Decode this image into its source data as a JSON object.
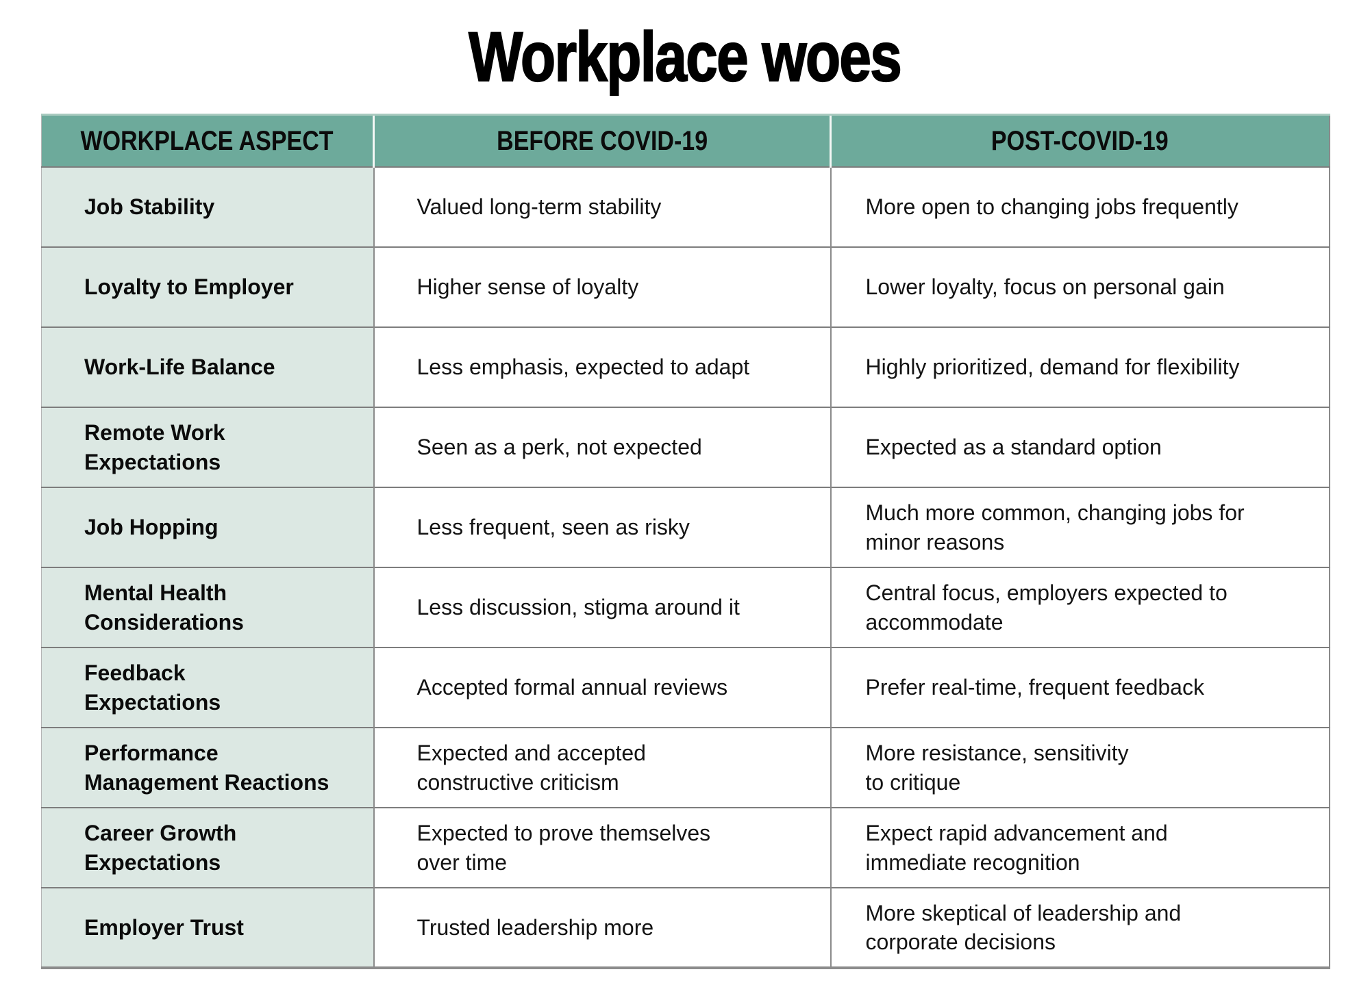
{
  "title": "Workplace woes",
  "colors": {
    "header_bg": "#6DAA9B",
    "aspect_col_bg": "#DCE8E3",
    "row_rule": "#7d7d7d",
    "text": "#141414"
  },
  "table": {
    "headers": [
      "WORKPLACE ASPECT",
      "BEFORE COVID-19",
      "POST-COVID-19"
    ],
    "rows": [
      {
        "aspect": "Job Stability",
        "before": "Valued long-term stability",
        "post": "More open to changing jobs frequently"
      },
      {
        "aspect": "Loyalty to Employer",
        "before": "Higher sense of loyalty",
        "post": "Lower loyalty, focus on personal gain"
      },
      {
        "aspect": "Work-Life Balance",
        "before": "Less emphasis, expected to adapt",
        "post": "Highly prioritized, demand for flexibility"
      },
      {
        "aspect": "Remote Work\nExpectations",
        "before": "Seen as a perk, not expected",
        "post": "Expected as a standard option"
      },
      {
        "aspect": "Job Hopping",
        "before": "Less frequent, seen as risky",
        "post": "Much more common, changing jobs for\nminor reasons"
      },
      {
        "aspect": "Mental Health\nConsiderations",
        "before": "Less discussion, stigma around it",
        "post": "Central focus, employers expected to\naccommodate"
      },
      {
        "aspect": "Feedback\nExpectations",
        "before": "Accepted formal annual reviews",
        "post": "Prefer real-time, frequent feedback"
      },
      {
        "aspect": "Performance\nManagement Reactions",
        "before": "Expected and accepted\nconstructive criticism",
        "post": "More resistance, sensitivity\nto critique"
      },
      {
        "aspect": "Career Growth\nExpectations",
        "before": "Expected to prove themselves\nover time",
        "post": "Expect rapid advancement and\nimmediate recognition"
      },
      {
        "aspect": "Employer Trust",
        "before": "Trusted leadership more",
        "post": "More skeptical of leadership and\ncorporate decisions"
      }
    ]
  },
  "chart_data": {
    "type": "table",
    "title": "Workplace woes",
    "columns": [
      "WORKPLACE ASPECT",
      "BEFORE COVID-19",
      "POST-COVID-19"
    ],
    "rows": [
      [
        "Job Stability",
        "Valued long-term stability",
        "More open to changing jobs frequently"
      ],
      [
        "Loyalty to Employer",
        "Higher sense of loyalty",
        "Lower loyalty, focus on personal gain"
      ],
      [
        "Work-Life Balance",
        "Less emphasis, expected to adapt",
        "Highly prioritized, demand for flexibility"
      ],
      [
        "Remote Work Expectations",
        "Seen as a perk, not expected",
        "Expected as a standard option"
      ],
      [
        "Job Hopping",
        "Less frequent, seen as risky",
        "Much more common, changing jobs for minor reasons"
      ],
      [
        "Mental Health Considerations",
        "Less discussion, stigma around it",
        "Central focus, employers expected to accommodate"
      ],
      [
        "Feedback Expectations",
        "Accepted formal annual reviews",
        "Prefer real-time, frequent feedback"
      ],
      [
        "Performance Management Reactions",
        "Expected and accepted constructive criticism",
        "More resistance, sensitivity to critique"
      ],
      [
        "Career Growth Expectations",
        "Expected to prove themselves over time",
        "Expect rapid advancement and immediate recognition"
      ],
      [
        "Employer Trust",
        "Trusted leadership more",
        "More skeptical of leadership and corporate decisions"
      ]
    ]
  }
}
